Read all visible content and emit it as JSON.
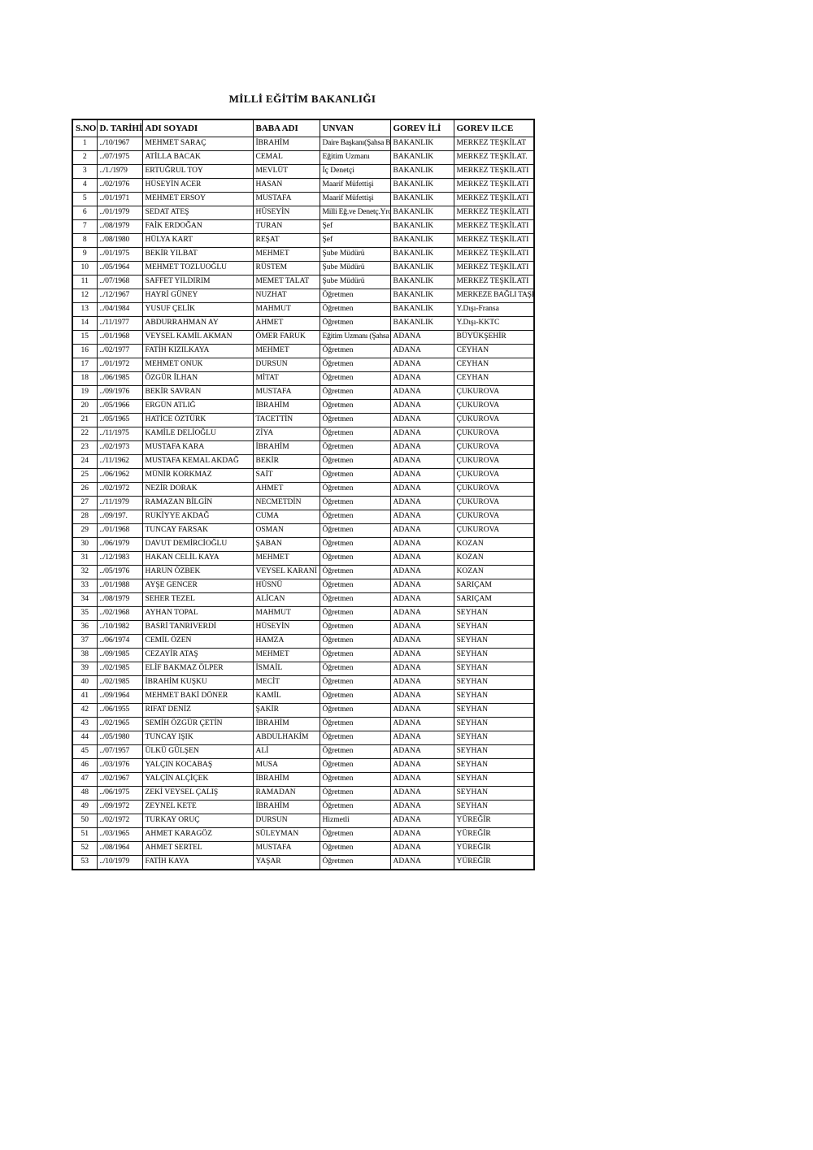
{
  "page": {
    "title": "MİLLİ EĞİTİM BAKANLIĞI"
  },
  "table": {
    "columns": [
      "S.NO",
      "D. TARİHİ",
      "ADI SOYADI",
      "BABA ADI",
      "UNVAN",
      "GOREV İLİ",
      "GOREV ILCE"
    ],
    "rows": [
      [
        "1",
        "../10/1967",
        "MEHMET SARAÇ",
        "İBRAHİM",
        "Daire Başkanı(Şahsa Bağlı)",
        "BAKANLIK",
        "MERKEZ TEŞKİLAT"
      ],
      [
        "2",
        "../07/1975",
        "ATİLLA BACAK",
        "CEMAL",
        "Eğitim Uzmanı",
        "BAKANLIK",
        "MERKEZ TEŞKİLAT."
      ],
      [
        "3",
        "../1./1979",
        "ERTUĞRUL TOY",
        "MEVLÜT",
        "İç Denetçi",
        "BAKANLIK",
        "MERKEZ TEŞKİLATI"
      ],
      [
        "4",
        "../02/1976",
        "HÜSEYİN ACER",
        "HASAN",
        "Maarif Müfettişi",
        "BAKANLIK",
        "MERKEZ TEŞKİLATI"
      ],
      [
        "5",
        "../01/1971",
        "MEHMET ERSOY",
        "MUSTAFA",
        "Maarif Müfettişi",
        "BAKANLIK",
        "MERKEZ TEŞKİLATI"
      ],
      [
        "6",
        "../01/1979",
        "SEDAT ATEŞ",
        "HÜSEYİN",
        "Milli Eğ.ve Denetç.Yrd.mcısı",
        "BAKANLIK",
        "MERKEZ TEŞKİLATI"
      ],
      [
        "7",
        "../08/1979",
        "FAİK ERDOĞAN",
        "TURAN",
        "Şef",
        "BAKANLIK",
        "MERKEZ TEŞKİLATI"
      ],
      [
        "8",
        "../08/1980",
        "HÜLYA KART",
        "REŞAT",
        "Şef",
        "BAKANLIK",
        "MERKEZ TEŞKİLATI"
      ],
      [
        "9",
        "../01/1975",
        "BEKİR YILBAT",
        "MEHMET",
        "Şube Müdürü",
        "BAKANLIK",
        "MERKEZ TEŞKİLATI"
      ],
      [
        "10",
        "../05/1964",
        "MEHMET TOZLUOĞLU",
        "RÜSTEM",
        "Şube Müdürü",
        "BAKANLIK",
        "MERKEZ TEŞKİLATI"
      ],
      [
        "11",
        "../07/1968",
        "SAFFET YILDIRIM",
        "MEMET TALAT",
        "Şube Müdürü",
        "BAKANLIK",
        "MERKEZ TEŞKİLATI"
      ],
      [
        "12",
        "../12/1967",
        "HAYRİ GÜNEY",
        "NUZHAT",
        "Öğretmen",
        "BAKANLIK",
        "MERKEZE BAĞLI TAŞRA"
      ],
      [
        "13",
        "../04/1984",
        "YUSUF ÇELİK",
        "MAHMUT",
        "Öğretmen",
        "BAKANLIK",
        "Y.Dışı-Fransa"
      ],
      [
        "14",
        "../11/1977",
        "ABDURRAHMAN AY",
        "AHMET",
        "Öğretmen",
        "BAKANLIK",
        "Y.Dışı-KKTC"
      ],
      [
        "15",
        "../01/1968",
        "VEYSEL KAMİL AKMAN",
        "ÖMER FARUK",
        "Eğitim Uzmanı (Şahsa Bağlı)",
        "ADANA",
        "BÜYÜKŞEHİR"
      ],
      [
        "16",
        "../02/1977",
        "FATİH KIZILKAYA",
        "MEHMET",
        "Öğretmen",
        "ADANA",
        "CEYHAN"
      ],
      [
        "17",
        "../01/1972",
        "MEHMET ONUK",
        "DURSUN",
        "Öğretmen",
        "ADANA",
        "CEYHAN"
      ],
      [
        "18",
        "../06/1985",
        "ÖZGÜR İLHAN",
        "MİTAT",
        "Öğretmen",
        "ADANA",
        "CEYHAN"
      ],
      [
        "19",
        "../09/1976",
        "BEKİR SAVRAN",
        "MUSTAFA",
        "Öğretmen",
        "ADANA",
        "ÇUKUROVA"
      ],
      [
        "20",
        "../05/1966",
        "ERGÜN ATLIĞ",
        "İBRAHİM",
        "Öğretmen",
        "ADANA",
        "ÇUKUROVA"
      ],
      [
        "21",
        "../05/1965",
        "HATİCE ÖZTÜRK",
        "TACETTİN",
        "Öğretmen",
        "ADANA",
        "ÇUKUROVA"
      ],
      [
        "22",
        "../11/1975",
        "KAMİLE DELİOĞLU",
        "ZİYA",
        "Öğretmen",
        "ADANA",
        "ÇUKUROVA"
      ],
      [
        "23",
        "../02/1973",
        "MUSTAFA KARA",
        "İBRAHİM",
        "Öğretmen",
        "ADANA",
        "ÇUKUROVA"
      ],
      [
        "24",
        "../11/1962",
        "MUSTAFA KEMAL AKDAĞ",
        "BEKİR",
        "Öğretmen",
        "ADANA",
        "ÇUKUROVA"
      ],
      [
        "25",
        "../06/1962",
        "MÜNİR KORKMAZ",
        "SAİT",
        "Öğretmen",
        "ADANA",
        "ÇUKUROVA"
      ],
      [
        "26",
        "../02/1972",
        "NEZİR DORAK",
        "AHMET",
        "Öğretmen",
        "ADANA",
        "ÇUKUROVA"
      ],
      [
        "27",
        "../11/1979",
        "RAMAZAN BİLGİN",
        "NECMETDİN",
        "Öğretmen",
        "ADANA",
        "ÇUKUROVA"
      ],
      [
        "28",
        "../09/197.",
        "RUKİYYE AKDAĞ",
        "CUMA",
        "Öğretmen",
        "ADANA",
        "ÇUKUROVA"
      ],
      [
        "29",
        "../01/1968",
        "TUNCAY FARSAK",
        "OSMAN",
        "Öğretmen",
        "ADANA",
        "ÇUKUROVA"
      ],
      [
        "30",
        "../06/1979",
        "DAVUT DEMİRCİOĞLU",
        "ŞABAN",
        "Öğretmen",
        "ADANA",
        "KOZAN"
      ],
      [
        "31",
        "../12/1983",
        "HAKAN CELİL KAYA",
        "MEHMET",
        "Öğretmen",
        "ADANA",
        "KOZAN"
      ],
      [
        "32",
        "../05/1976",
        "HARUN ÖZBEK",
        "VEYSEL KARANİ",
        "Öğretmen",
        "ADANA",
        "KOZAN"
      ],
      [
        "33",
        "../01/1988",
        "AYŞE GENCER",
        "HÜSNÜ",
        "Öğretmen",
        "ADANA",
        "SARIÇAM"
      ],
      [
        "34",
        "../08/1979",
        "SEHER TEZEL",
        "ALİCAN",
        "Öğretmen",
        "ADANA",
        "SARIÇAM"
      ],
      [
        "35",
        "../02/1968",
        "AYHAN TOPAL",
        "MAHMUT",
        "Öğretmen",
        "ADANA",
        "SEYHAN"
      ],
      [
        "36",
        "../10/1982",
        "BASRİ TANRIVERDİ",
        "HÜSEYİN",
        "Öğretmen",
        "ADANA",
        "SEYHAN"
      ],
      [
        "37",
        "../06/1974",
        "CEMİL ÖZEN",
        "HAMZA",
        "Öğretmen",
        "ADANA",
        "SEYHAN"
      ],
      [
        "38",
        "../09/1985",
        "CEZAYİR ATAŞ",
        "MEHMET",
        "Öğretmen",
        "ADANA",
        "SEYHAN"
      ],
      [
        "39",
        "../02/1985",
        "ELİF BAKMAZ ÖLPER",
        "İSMAİL",
        "Öğretmen",
        "ADANA",
        "SEYHAN"
      ],
      [
        "40",
        "../02/1985",
        "İBRAHİM KUŞKU",
        "MECİT",
        "Öğretmen",
        "ADANA",
        "SEYHAN"
      ],
      [
        "41",
        "../09/1964",
        "MEHMET BAKİ DÖNER",
        "KAMİL",
        "Öğretmen",
        "ADANA",
        "SEYHAN"
      ],
      [
        "42",
        "../06/1955",
        "RIFAT DENİZ",
        "ŞAKİR",
        "Öğretmen",
        "ADANA",
        "SEYHAN"
      ],
      [
        "43",
        "../02/1965",
        "SEMİH ÖZGÜR ÇETİN",
        "İBRAHİM",
        "Öğretmen",
        "ADANA",
        "SEYHAN"
      ],
      [
        "44",
        "../05/1980",
        "TUNCAY IŞIK",
        "ABDULHAKİM",
        "Öğretmen",
        "ADANA",
        "SEYHAN"
      ],
      [
        "45",
        "../07/1957",
        "ÜLKÜ GÜLŞEN",
        "ALİ",
        "Öğretmen",
        "ADANA",
        "SEYHAN"
      ],
      [
        "46",
        "../03/1976",
        "YALÇIN KOCABAŞ",
        "MUSA",
        "Öğretmen",
        "ADANA",
        "SEYHAN"
      ],
      [
        "47",
        "../02/1967",
        "YALÇİN ALÇİÇEK",
        "İBRAHİM",
        "Öğretmen",
        "ADANA",
        "SEYHAN"
      ],
      [
        "48",
        "../06/1975",
        "ZEKİ VEYSEL ÇALIŞ",
        "RAMADAN",
        "Öğretmen",
        "ADANA",
        "SEYHAN"
      ],
      [
        "49",
        "../09/1972",
        "ZEYNEL KETE",
        "İBRAHİM",
        "Öğretmen",
        "ADANA",
        "SEYHAN"
      ],
      [
        "50",
        "../02/1972",
        "TURKAY ORUÇ",
        "DURSUN",
        "Hizmetli",
        "ADANA",
        "YÜREĞİR"
      ],
      [
        "51",
        "../03/1965",
        "AHMET KARAGÖZ",
        "SÜLEYMAN",
        "Öğretmen",
        "ADANA",
        "YÜREĞİR"
      ],
      [
        "52",
        "../08/1964",
        "AHMET SERTEL",
        "MUSTAFA",
        "Öğretmen",
        "ADANA",
        "YÜREĞİR"
      ],
      [
        "53",
        "../10/1979",
        "FATİH KAYA",
        "YAŞAR",
        "Öğretmen",
        "ADANA",
        "YÜREĞİR"
      ]
    ]
  }
}
